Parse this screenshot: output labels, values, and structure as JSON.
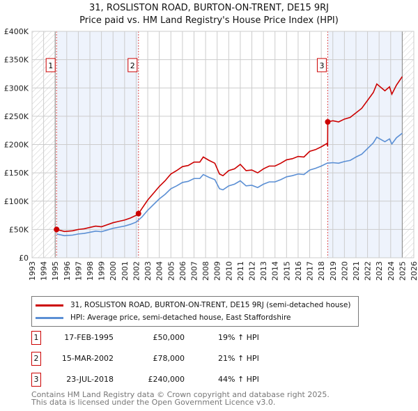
{
  "title": "31, ROSLISTON ROAD, BURTON-ON-TRENT, DE15 9RJ",
  "subtitle": "Price paid vs. HM Land Registry's House Price Index (HPI)",
  "colors": {
    "price": "#cc0000",
    "hpi": "#5b8fd4",
    "shade": "#eef3fc"
  },
  "chart_data": {
    "type": "line",
    "ylim": [
      0,
      400000
    ],
    "xlim": [
      1993,
      2026
    ],
    "yticks": [
      0,
      50000,
      100000,
      150000,
      200000,
      250000,
      300000,
      350000,
      400000
    ],
    "ytick_labels": [
      "£0",
      "£50K",
      "£100K",
      "£150K",
      "£200K",
      "£250K",
      "£300K",
      "£350K",
      "£400K"
    ],
    "xtick_labels": [
      "1993",
      "1994",
      "1995",
      "1996",
      "1997",
      "1998",
      "1999",
      "2000",
      "2001",
      "2002",
      "2003",
      "2004",
      "2005",
      "2006",
      "2007",
      "2008",
      "2009",
      "2010",
      "2011",
      "2012",
      "2013",
      "2014",
      "2015",
      "2016",
      "2017",
      "2018",
      "2019",
      "2020",
      "2021",
      "2022",
      "2023",
      "2024",
      "2025",
      "2026"
    ],
    "grid": true,
    "data_range": [
      1995.0,
      2025.0
    ],
    "series": [
      {
        "name": "HPI: Average price, semi-detached house, East Staffordshire",
        "color": "#5b8fd4",
        "x": [
          1995.12,
          1995.8,
          1996.5,
          1997,
          1997.5,
          1998,
          1998.5,
          1999,
          1999.5,
          2000,
          2000.5,
          2001,
          2001.5,
          2002,
          2002.5,
          2003,
          2003.5,
          2004,
          2004.5,
          2005,
          2005.5,
          2006,
          2006.5,
          2007,
          2007.5,
          2007.8,
          2008.3,
          2008.8,
          2009.2,
          2009.5,
          2010,
          2010.5,
          2011,
          2011.5,
          2012,
          2012.5,
          2013,
          2013.5,
          2014,
          2014.5,
          2015,
          2015.5,
          2016,
          2016.5,
          2017,
          2017.5,
          2018,
          2018.5,
          2019,
          2019.5,
          2020,
          2020.5,
          2021,
          2021.5,
          2022,
          2022.5,
          2022.8,
          2023.5,
          2023.9,
          2024.1,
          2024.5,
          2025
        ],
        "y": [
          42000,
          39000,
          40000,
          42000,
          43000,
          45000,
          47000,
          46000,
          49000,
          52000,
          54000,
          56000,
          59000,
          63000,
          72000,
          84000,
          94000,
          104000,
          112000,
          122000,
          127000,
          133000,
          135000,
          140000,
          140000,
          147000,
          142000,
          138000,
          122000,
          120000,
          127000,
          130000,
          136000,
          127000,
          128000,
          124000,
          130000,
          134000,
          134000,
          138000,
          143000,
          145000,
          148000,
          147000,
          155000,
          158000,
          162000,
          167000,
          168000,
          167000,
          170000,
          172000,
          178000,
          183000,
          193000,
          203000,
          213000,
          205000,
          210000,
          201000,
          212000,
          220000
        ]
      },
      {
        "name": "31, ROSLISTON ROAD, BURTON-ON-TRENT, DE15 9RJ (semi-detached house)",
        "color": "#cc0000",
        "x": [
          1995.12,
          1995.8,
          1996.5,
          1997,
          1997.5,
          1998,
          1998.5,
          1999,
          1999.5,
          2000,
          2000.5,
          2001,
          2001.5,
          2002,
          2002.2,
          2002.5,
          2003,
          2003.5,
          2004,
          2004.5,
          2005,
          2005.5,
          2006,
          2006.5,
          2007,
          2007.5,
          2007.8,
          2008.3,
          2008.8,
          2009.2,
          2009.5,
          2010,
          2010.5,
          2011,
          2011.5,
          2012,
          2012.5,
          2013,
          2013.5,
          2014,
          2014.5,
          2015,
          2015.5,
          2016,
          2016.5,
          2017,
          2017.5,
          2018,
          2018.5,
          2018.55,
          2018.56,
          2019,
          2019.5,
          2020,
          2020.5,
          2021,
          2021.5,
          2022,
          2022.5,
          2022.8,
          2023.5,
          2023.9,
          2024.1,
          2024.5,
          2025
        ],
        "y": [
          50000,
          46400,
          47600,
          50000,
          51200,
          53600,
          55900,
          54700,
          58300,
          61900,
          64300,
          66600,
          70200,
          75000,
          78000,
          87000,
          102000,
          114000,
          126000,
          136000,
          148000,
          154000,
          161000,
          163000,
          169000,
          169000,
          178000,
          172000,
          167000,
          148000,
          145000,
          154000,
          157000,
          165000,
          154000,
          155000,
          150000,
          157000,
          162000,
          162000,
          167000,
          173000,
          175000,
          179000,
          178000,
          188000,
          191000,
          196000,
          202000,
          197000,
          240000,
          242000,
          240000,
          245000,
          248000,
          256000,
          264000,
          278000,
          292000,
          307000,
          295000,
          302000,
          289000,
          305000,
          320000
        ]
      }
    ],
    "sales": [
      {
        "num": "1",
        "date": "17-FEB-1995",
        "x": 1995.12,
        "price": "£50,000",
        "value": 50000,
        "hpi": "19% ↑ HPI"
      },
      {
        "num": "2",
        "date": "15-MAR-2002",
        "x": 2002.2,
        "price": "£78,000",
        "value": 78000,
        "hpi": "21% ↑ HPI"
      },
      {
        "num": "3",
        "date": "23-JUL-2018",
        "x": 2018.56,
        "price": "£240,000",
        "value": 240000,
        "hpi": "44% ↑ HPI"
      }
    ]
  },
  "legend": {
    "price": "31, ROSLISTON ROAD, BURTON-ON-TRENT, DE15 9RJ (semi-detached house)",
    "hpi": "HPI: Average price, semi-detached house, East Staffordshire"
  },
  "footer": {
    "line1": "Contains HM Land Registry data © Crown copyright and database right 2025.",
    "line2": "This data is licensed under the Open Government Licence v3.0."
  }
}
